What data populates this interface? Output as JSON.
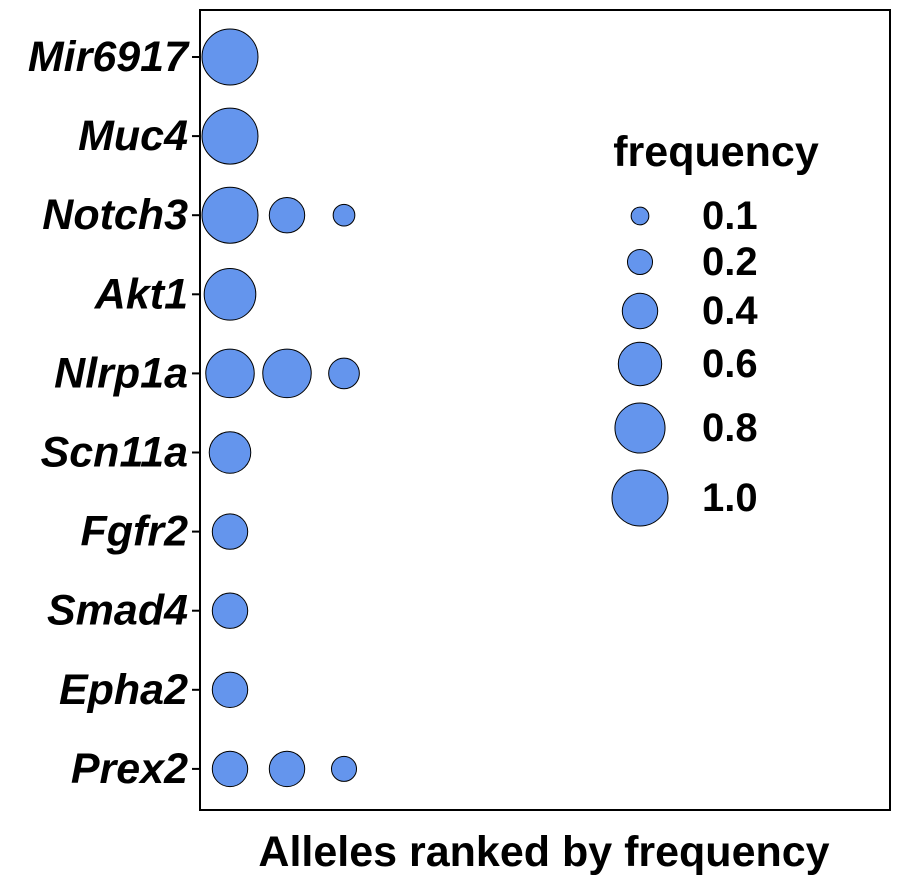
{
  "chart_data": {
    "type": "scatter",
    "title": "",
    "xlabel": "Alleles ranked by frequency",
    "ylabel": "",
    "categories": [
      "Mir6917",
      "Muc4",
      "Notch3",
      "Akt1",
      "Nlrp1a",
      "Scn11a",
      "Fgfr2",
      "Smad4",
      "Epha2",
      "Prex2"
    ],
    "points": [
      {
        "gene": "Mir6917",
        "rank": 1,
        "frequency": 1.0
      },
      {
        "gene": "Muc4",
        "rank": 1,
        "frequency": 1.0
      },
      {
        "gene": "Notch3",
        "rank": 1,
        "frequency": 1.0
      },
      {
        "gene": "Notch3",
        "rank": 2,
        "frequency": 0.4
      },
      {
        "gene": "Notch3",
        "rank": 3,
        "frequency": 0.15
      },
      {
        "gene": "Akt1",
        "rank": 1,
        "frequency": 0.85
      },
      {
        "gene": "Nlrp1a",
        "rank": 1,
        "frequency": 0.75
      },
      {
        "gene": "Nlrp1a",
        "rank": 2,
        "frequency": 0.75
      },
      {
        "gene": "Nlrp1a",
        "rank": 3,
        "frequency": 0.3
      },
      {
        "gene": "Scn11a",
        "rank": 1,
        "frequency": 0.55
      },
      {
        "gene": "Fgfr2",
        "rank": 1,
        "frequency": 0.4
      },
      {
        "gene": "Smad4",
        "rank": 1,
        "frequency": 0.4
      },
      {
        "gene": "Epha2",
        "rank": 1,
        "frequency": 0.4
      },
      {
        "gene": "Prex2",
        "rank": 1,
        "frequency": 0.4
      },
      {
        "gene": "Prex2",
        "rank": 2,
        "frequency": 0.4
      },
      {
        "gene": "Prex2",
        "rank": 3,
        "frequency": 0.2
      }
    ],
    "legend": {
      "title": "frequency",
      "placement": "right",
      "entries": [
        {
          "label": "0.1",
          "value": 0.1
        },
        {
          "label": "0.2",
          "value": 0.2
        },
        {
          "label": "0.4",
          "value": 0.4
        },
        {
          "label": "0.6",
          "value": 0.6
        },
        {
          "label": "0.8",
          "value": 0.8
        },
        {
          "label": "1.0",
          "value": 1.0
        }
      ]
    },
    "point_color": "#6495ED",
    "point_outline_color": "#000000",
    "grid": false
  }
}
